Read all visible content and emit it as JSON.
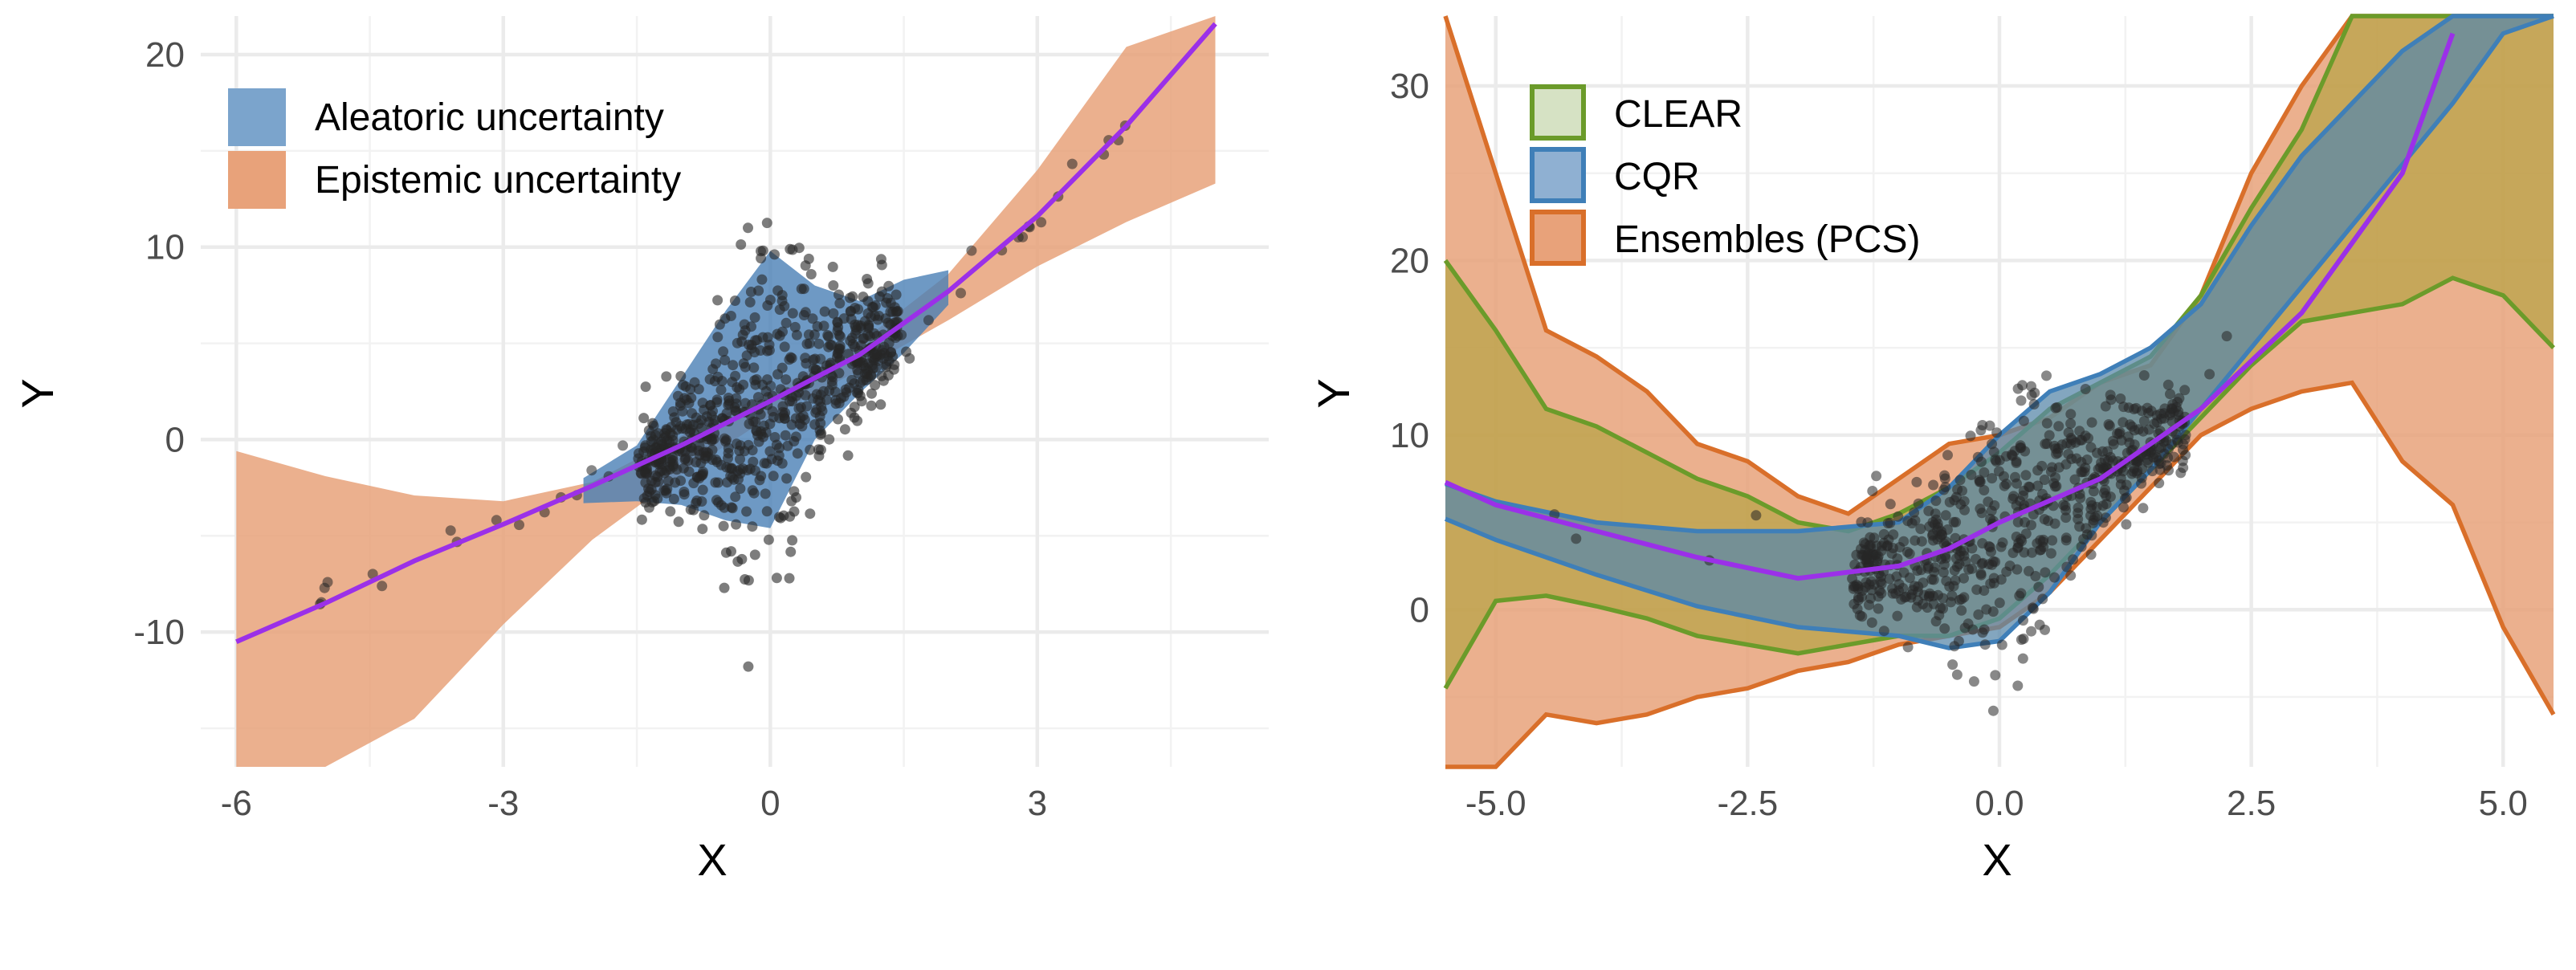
{
  "chart_data": [
    {
      "type": "scatter",
      "xlabel": "X",
      "ylabel": "Y",
      "xlim": [
        -6.4,
        5.6
      ],
      "ylim": [
        -17,
        22
      ],
      "xticks": [
        -6,
        -3,
        0,
        3
      ],
      "yticks": [
        -10,
        0,
        10,
        20
      ],
      "xtick_labels": [
        "-6",
        "-3",
        "0",
        "3"
      ],
      "ytick_labels": [
        "-10",
        "0",
        "10",
        "20"
      ],
      "grid": true,
      "legend_position": "top-left",
      "legend": [
        {
          "label": "Aleatoric uncertainty",
          "color": "#7ba4cc"
        },
        {
          "label": "Epistemic uncertainty",
          "color": "#e8a27a"
        }
      ],
      "fit_line": {
        "color": "#9b30e8",
        "x": [
          -6.0,
          -5.0,
          -4.0,
          -3.0,
          -2.0,
          -1.0,
          0.0,
          1.0,
          2.0,
          3.0,
          4.0,
          5.0
        ],
        "y": [
          -10.5,
          -8.5,
          -6.3,
          -4.4,
          -2.4,
          -0.3,
          2.0,
          4.4,
          7.7,
          11.6,
          16.3,
          21.6
        ]
      },
      "epistemic_band": {
        "color": "#e8a27a",
        "x": [
          -6.0,
          -5.0,
          -4.0,
          -3.0,
          -2.0,
          -1.0,
          0.0,
          1.0,
          2.0,
          3.0,
          4.0,
          5.0
        ],
        "lower": [
          -17.0,
          -17.0,
          -14.5,
          -9.6,
          -5.2,
          -1.8,
          1.2,
          3.6,
          6.2,
          9.0,
          11.3,
          13.3
        ],
        "upper": [
          -0.6,
          -1.9,
          -2.9,
          -3.2,
          -2.2,
          0.2,
          2.5,
          5.0,
          8.6,
          14.0,
          20.4,
          22.0
        ]
      },
      "aleatoric_band": {
        "color": "#4a7fb5",
        "x": [
          -2.1,
          -1.5,
          -1.0,
          -0.5,
          0.0,
          0.5,
          1.0,
          1.5,
          2.0
        ],
        "lower": [
          -3.3,
          -3.2,
          -3.4,
          -4.2,
          -4.6,
          0.0,
          2.4,
          4.5,
          7.0
        ],
        "upper": [
          -2.0,
          -0.3,
          3.2,
          6.7,
          9.8,
          8.0,
          7.2,
          8.3,
          8.8
        ]
      },
      "points": {
        "color": "#1a1a1a",
        "clusters": [
          {
            "x_range": [
              -1.5,
              1.5
            ],
            "y_center_slope": 2.2,
            "y_center_intercept": 2.0,
            "count": 700
          },
          {
            "x_range": [
              -6.0,
              5.0
            ],
            "count": 45
          }
        ]
      }
    },
    {
      "type": "line",
      "xlabel": "X",
      "ylabel": "Y",
      "xlim": [
        -5.5,
        5.5
      ],
      "ylim": [
        -9,
        34
      ],
      "xticks": [
        -5.0,
        -2.5,
        0.0,
        2.5,
        5.0
      ],
      "yticks": [
        0,
        10,
        20,
        30
      ],
      "xtick_labels": [
        "-5.0",
        "-2.5",
        "0.0",
        "2.5",
        "5.0"
      ],
      "ytick_labels": [
        "0",
        "10",
        "20",
        "30"
      ],
      "grid": true,
      "legend_position": "top-left",
      "legend": [
        {
          "label": "CLEAR",
          "fill": "#d6e2c4",
          "stroke": "#6b9b2a"
        },
        {
          "label": "CQR",
          "fill": "#8fb0d2",
          "stroke": "#3f7fb8"
        },
        {
          "label": "Ensembles (PCS)",
          "fill": "#e8a27a",
          "stroke": "#d96f2a"
        }
      ],
      "fit_line": {
        "color": "#9b30e8",
        "x": [
          -5.5,
          -5.0,
          -4.0,
          -3.0,
          -2.0,
          -1.0,
          -0.5,
          0.0,
          1.0,
          2.0,
          3.0,
          4.0,
          4.5
        ],
        "y": [
          7.3,
          6.0,
          4.5,
          3.0,
          1.8,
          2.5,
          3.5,
          5.0,
          7.5,
          11.5,
          17.0,
          25.0,
          33.0
        ]
      },
      "series": [
        {
          "name": "Ensembles (PCS)",
          "x": [
            -5.5,
            -5.0,
            -4.5,
            -4.0,
            -3.5,
            -3.0,
            -2.5,
            -2.0,
            -1.5,
            -1.0,
            -0.5,
            0.0,
            0.5,
            1.0,
            1.5,
            2.0,
            2.5,
            3.0,
            3.5,
            4.0,
            4.5,
            5.0,
            5.5
          ],
          "lower": [
            -9.0,
            -9.0,
            -6.0,
            -6.5,
            -6.0,
            -5.0,
            -4.5,
            -3.5,
            -3.0,
            -2.0,
            -1.5,
            -1.0,
            1.0,
            4.0,
            7.0,
            10.0,
            11.5,
            12.5,
            13.0,
            8.5,
            6.0,
            -1.0,
            -6.0
          ],
          "upper": [
            34.0,
            25.0,
            16.0,
            14.5,
            12.5,
            9.5,
            8.5,
            6.5,
            5.5,
            7.5,
            9.5,
            10.0,
            11.0,
            13.0,
            14.0,
            18.0,
            25.0,
            30.0,
            34.0,
            34.0,
            34.0,
            34.0,
            34.0
          ]
        },
        {
          "name": "CLEAR",
          "x": [
            -5.5,
            -5.0,
            -4.5,
            -4.0,
            -3.5,
            -3.0,
            -2.5,
            -2.0,
            -1.5,
            -1.0,
            -0.5,
            0.0,
            0.5,
            1.0,
            1.5,
            2.0,
            2.5,
            3.0,
            3.5,
            4.0,
            4.5,
            5.0,
            5.5
          ],
          "lower": [
            -4.5,
            0.5,
            0.8,
            0.2,
            -0.5,
            -1.5,
            -2.0,
            -2.5,
            -2.0,
            -1.5,
            -1.5,
            -0.5,
            2.0,
            5.0,
            8.0,
            11.0,
            14.0,
            16.5,
            17.0,
            17.5,
            19.0,
            18.0,
            15.0
          ],
          "upper": [
            20.0,
            16.0,
            11.5,
            10.5,
            9.0,
            7.5,
            6.5,
            5.0,
            4.5,
            5.5,
            7.0,
            9.0,
            11.5,
            13.0,
            14.5,
            18.0,
            23.0,
            27.5,
            34.0,
            34.0,
            34.0,
            34.0,
            34.0
          ]
        },
        {
          "name": "CQR",
          "x": [
            -5.5,
            -5.0,
            -4.0,
            -3.0,
            -2.0,
            -1.0,
            -0.5,
            0.0,
            0.5,
            1.0,
            1.5,
            2.0,
            2.5,
            3.0,
            3.5,
            4.0,
            4.5,
            5.0,
            5.5
          ],
          "lower": [
            5.2,
            4.0,
            2.0,
            0.2,
            -1.0,
            -1.5,
            -2.2,
            -1.8,
            1.0,
            5.0,
            8.0,
            11.5,
            15.0,
            18.5,
            22.0,
            25.5,
            29.0,
            33.0,
            34.0
          ],
          "upper": [
            7.2,
            6.2,
            5.0,
            4.5,
            4.5,
            5.0,
            7.0,
            10.0,
            12.5,
            13.5,
            15.0,
            17.5,
            22.0,
            26.0,
            29.0,
            32.0,
            34.0,
            34.0,
            34.0
          ]
        }
      ],
      "points": {
        "color": "#1a1a1a",
        "clusters": [
          {
            "x_range": [
              -1.5,
              2.0
            ],
            "count": 650
          },
          {
            "x_range": [
              -5.0,
              4.5
            ],
            "count": 12
          }
        ]
      }
    }
  ]
}
